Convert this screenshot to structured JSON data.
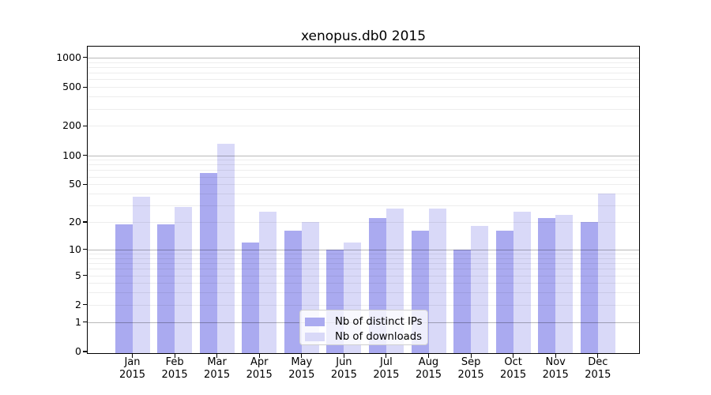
{
  "chart_data": {
    "type": "bar",
    "title": "xenopus.db0 2015",
    "categories": [
      "Jan 2015",
      "Feb 2015",
      "Mar 2015",
      "Apr 2015",
      "May 2015",
      "Jun 2015",
      "Jul 2015",
      "Aug 2015",
      "Sep 2015",
      "Oct 2015",
      "Nov 2015",
      "Dec 2015"
    ],
    "series": [
      {
        "name": "Nb of distinct IPs",
        "color": "#aaaaf0",
        "values": [
          19,
          19,
          66,
          12,
          16,
          10,
          22,
          16,
          10,
          16,
          22,
          20
        ]
      },
      {
        "name": "Nb of downloads",
        "color": "#d9d9f8",
        "values": [
          37,
          29,
          132,
          26,
          20,
          12,
          28,
          28,
          18,
          26,
          24,
          40
        ]
      }
    ],
    "xlabel": "",
    "ylabel": "",
    "yscale": "log(1+y)",
    "yticks": [
      1000,
      500,
      200,
      100,
      50,
      20,
      10,
      5,
      2,
      1,
      0
    ],
    "ylim": [
      0,
      1300
    ],
    "grid": "horizontal; light minor lines at 2-9 per decade, darker lines at 1,10,100,1000",
    "legend_position": "inside-bottom-center"
  }
}
